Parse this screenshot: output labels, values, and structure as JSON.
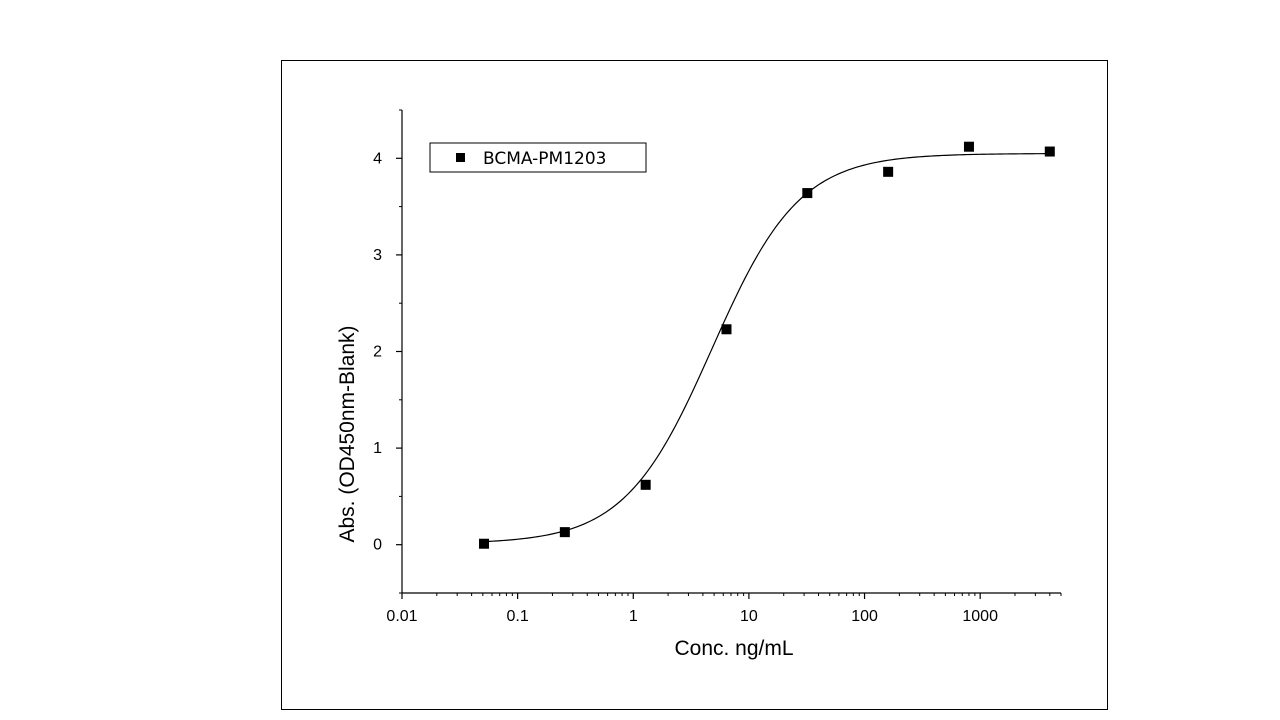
{
  "chart_data": {
    "type": "scatter",
    "title": "",
    "xlabel": "Conc. ng/mL",
    "ylabel": "Abs. (OD450nm-Blank)",
    "xscale": "log",
    "xlim": [
      0.01,
      5000
    ],
    "ylim": [
      -0.5,
      4.5
    ],
    "x_ticks": [
      0.01,
      0.1,
      1,
      10,
      100,
      1000
    ],
    "x_tick_labels": [
      "0.01",
      "0.1",
      "1",
      "10",
      "100",
      "1000"
    ],
    "y_ticks": [
      0,
      1,
      2,
      3,
      4
    ],
    "y_tick_labels": [
      "0",
      "1",
      "2",
      "3",
      "4"
    ],
    "grid": false,
    "legend_position": "top-left",
    "series": [
      {
        "name": "BCMA-PM1203",
        "marker": "square",
        "color": "#000000",
        "x": [
          0.0512,
          0.256,
          1.28,
          6.4,
          32,
          160,
          800,
          4000
        ],
        "y": [
          0.01,
          0.13,
          0.62,
          2.23,
          3.64,
          3.86,
          4.12,
          4.07
        ]
      }
    ],
    "fit_curve": {
      "type": "4PL",
      "color": "#000000",
      "bottom": 0.01,
      "top": 4.05,
      "ec50": 4.8,
      "hill": 1.15
    }
  }
}
